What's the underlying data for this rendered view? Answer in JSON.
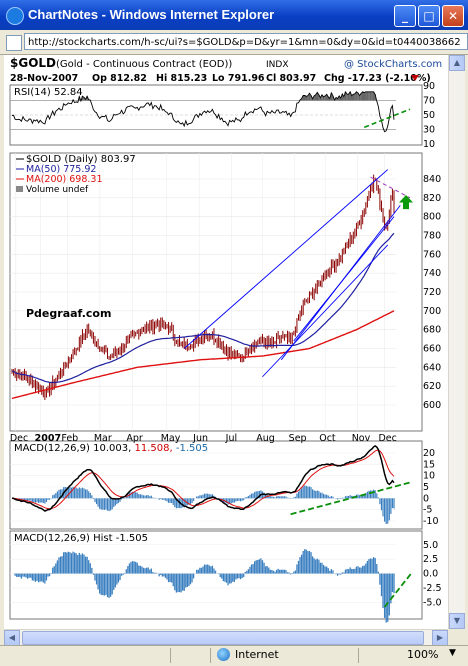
{
  "window": {
    "title": "ChartNotes - Windows Internet Explorer",
    "url": "http://stockcharts.com/h-sc/ui?s=$GOLD&p=D&yr=1&mn=0&dy=0&id=t0440038662"
  },
  "chart": {
    "symbol": "$GOLD",
    "name": "(Gold - Continuous Contract (EOD))",
    "exchange": "INDX",
    "copyright": "@ StockCharts.com",
    "date": "28-Nov-2007",
    "open": "Op 812.82",
    "high": "Hi 815.23",
    "low": "Lo 791.96",
    "close": "Cl 803.97",
    "change": "Chg -17.23 (-2.10%)",
    "annotation": "Pdegraaf.com"
  },
  "rsi": {
    "label": "RSI(14) 52.84",
    "ticks": [
      "90",
      "70",
      "50",
      "30",
      "10"
    ]
  },
  "price": {
    "legend_main": "$GOLD (Daily) 803.97",
    "legend_ma50": "MA(50) 775.92",
    "legend_ma200": "MA(200) 698.31",
    "legend_volume": "Volume undef",
    "ticks": [
      "840",
      "820",
      "800",
      "780",
      "760",
      "740",
      "720",
      "700",
      "680",
      "660",
      "640",
      "620",
      "600"
    ]
  },
  "months": [
    "Dec",
    "2007",
    "Feb",
    "Mar",
    "Apr",
    "May",
    "Jun",
    "Jul",
    "Aug",
    "Sep",
    "Oct",
    "Nov",
    "Dec"
  ],
  "macd": {
    "label_prefix": "MACD(12,26,9)",
    "value": "10.003,",
    "signal": "11.508,",
    "hist": "-1.505",
    "ticks": [
      "20",
      "15",
      "10",
      "5",
      "0",
      "-5",
      "-10"
    ]
  },
  "hist": {
    "label": "MACD(12,26,9) Hist -1.505",
    "ticks": [
      "5.0",
      "2.5",
      "0.0",
      "-2.5",
      "-5.0"
    ]
  },
  "statusbar": {
    "zone": "Internet",
    "zoom": "100%"
  },
  "colors": {
    "price_bars": "#8b0000",
    "ma50": "#1f1fa0",
    "ma200": "#e01010",
    "trendline": "#0000ff",
    "green_dashed": "#0a8f0a",
    "macd_hist": "#3a7fc0"
  }
}
